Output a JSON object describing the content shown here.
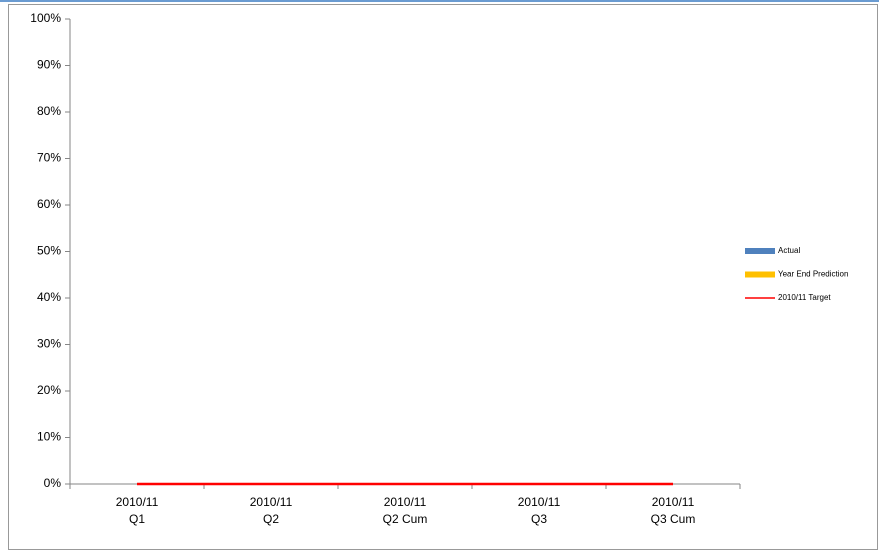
{
  "chart_data": {
    "type": "bar",
    "categories": [
      "2010/11 Q1",
      "2010/11 Q2",
      "2010/11 Q2 Cum",
      "2010/11 Q3",
      "2010/11 Q3 Cum"
    ],
    "series": [
      {
        "name": "Actual",
        "color": "#4f81bd",
        "values": [
          0,
          0,
          0,
          0,
          0
        ]
      },
      {
        "name": "Year End Prediction",
        "color": "#ffc000",
        "values": [
          0,
          0,
          0,
          0,
          0
        ]
      },
      {
        "name": "2010/11 Target",
        "color": "#ff0000",
        "type": "line",
        "values": [
          0,
          0,
          0,
          0,
          0
        ]
      }
    ],
    "ylim": [
      0,
      100
    ],
    "yticks": [
      {
        "value": 0,
        "label": "0%"
      },
      {
        "value": 10,
        "label": "10%"
      },
      {
        "value": 20,
        "label": "20%"
      },
      {
        "value": 30,
        "label": "30%"
      },
      {
        "value": 40,
        "label": "40%"
      },
      {
        "value": 50,
        "label": "50%"
      },
      {
        "value": 60,
        "label": "60%"
      },
      {
        "value": 70,
        "label": "70%"
      },
      {
        "value": 80,
        "label": "80%"
      },
      {
        "value": 90,
        "label": "90%"
      },
      {
        "value": 100,
        "label": "100%"
      }
    ],
    "legend": "right"
  }
}
